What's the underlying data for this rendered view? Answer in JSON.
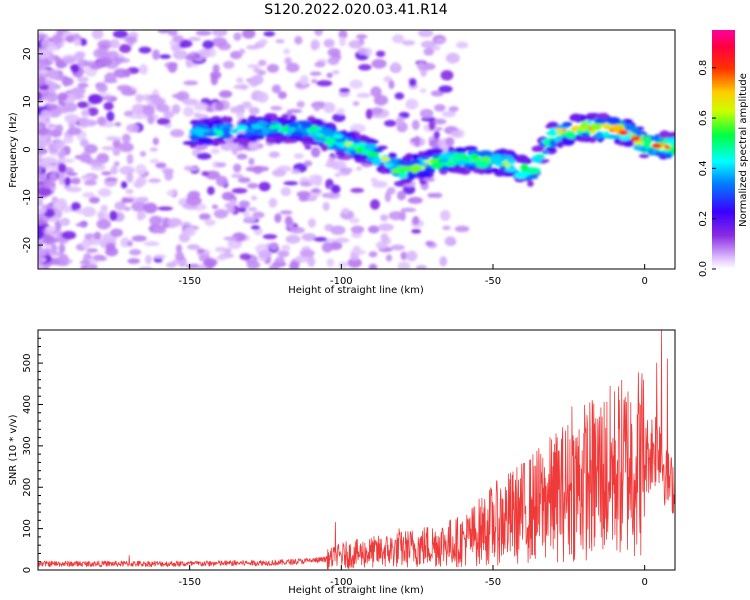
{
  "title": "S120.2022.020.03.41.R14",
  "colors": {
    "snr_line": "#f03a3a",
    "spectrogram_low": "#d9b3ff",
    "spectrogram_high": "#ff0080"
  },
  "chart_data": [
    {
      "type": "heatmap",
      "title": "S120.2022.020.03.41.R14",
      "xlabel": "Height of straight line (km)",
      "ylabel": "Frequency (Hz)",
      "xlim": [
        -200,
        10
      ],
      "ylim": [
        -25,
        25
      ],
      "x_ticks": [
        -150,
        -100,
        -50,
        0
      ],
      "y_ticks": [
        -20,
        -10,
        0,
        10,
        20
      ],
      "colormap": "rainbow (purple to magenta)",
      "colorbar": {
        "label": "Normalized spectral amplitude",
        "range": [
          0,
          0.95
        ],
        "ticks": [
          0.0,
          0.2,
          0.4,
          0.6,
          0.8
        ]
      },
      "ridge": {
        "x": [
          -148,
          -125,
          -110,
          -100,
          -90,
          -80,
          -72,
          -65,
          -55,
          -45,
          -38,
          -30,
          -22,
          -12,
          -5,
          0,
          10
        ],
        "y": [
          3.5,
          4.5,
          4,
          1.5,
          -0.5,
          -4.5,
          -3,
          -2,
          -2,
          -3,
          -5,
          3,
          4.5,
          4.5,
          3.5,
          1.0,
          0.5
        ]
      },
      "noise_region": {
        "x_range": [
          -200,
          -100
        ],
        "y_range": [
          -25,
          25
        ]
      },
      "grid": false
    },
    {
      "type": "line",
      "xlabel": "Height of straight line (km)",
      "ylabel": "SNR (10 * v/v)",
      "xlim": [
        -200,
        10
      ],
      "ylim": [
        0,
        580
      ],
      "x_ticks": [
        -150,
        -100,
        -50,
        0
      ],
      "y_ticks": [
        0,
        100,
        200,
        300,
        400,
        500
      ],
      "series": [
        {
          "trend_x": [
            -200,
            -150,
            -120,
            -105,
            -100,
            -80,
            -60,
            -50,
            -40,
            -30,
            -20,
            -10,
            0,
            5,
            7,
            10
          ],
          "trend_y": [
            15,
            15,
            18,
            25,
            35,
            50,
            70,
            110,
            140,
            175,
            215,
            240,
            270,
            310,
            220,
            200
          ],
          "spike_x": [
            -170,
            -102,
            -81,
            -53,
            -40,
            -30,
            -24,
            -20,
            -15,
            -5,
            4,
            5.5,
            7.5
          ],
          "spike_y": [
            35,
            115,
            100,
            150,
            235,
            285,
            395,
            330,
            370,
            270,
            500,
            580,
            510
          ]
        }
      ],
      "grid": false
    }
  ]
}
